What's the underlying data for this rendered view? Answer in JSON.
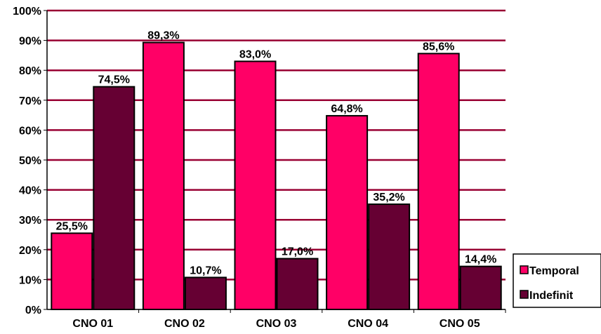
{
  "chart_data": {
    "type": "bar",
    "categories": [
      "CNO 01",
      "CNO 02",
      "CNO 03",
      "CNO 04",
      "CNO 05"
    ],
    "series": [
      {
        "name": "Temporal",
        "values": [
          25.5,
          89.3,
          83.0,
          64.8,
          85.6
        ],
        "labels": [
          "25,5%",
          "89,3%",
          "83,0%",
          "64,8%",
          "85,6%"
        ],
        "color": "#ff0066"
      },
      {
        "name": "Indefinit",
        "values": [
          74.5,
          10.7,
          17.0,
          35.2,
          14.4
        ],
        "labels": [
          "74,5%",
          "10,7%",
          "17,0%",
          "35,2%",
          "14,4%"
        ],
        "color": "#660033"
      }
    ],
    "y_ticks": [
      "0%",
      "10%",
      "20%",
      "30%",
      "40%",
      "50%",
      "60%",
      "70%",
      "80%",
      "90%",
      "100%"
    ],
    "ylim": [
      0,
      100
    ],
    "grid": true,
    "gridline_color": "#990033",
    "legend_position": "bottom-right",
    "title": "",
    "xlabel": "",
    "ylabel": ""
  }
}
